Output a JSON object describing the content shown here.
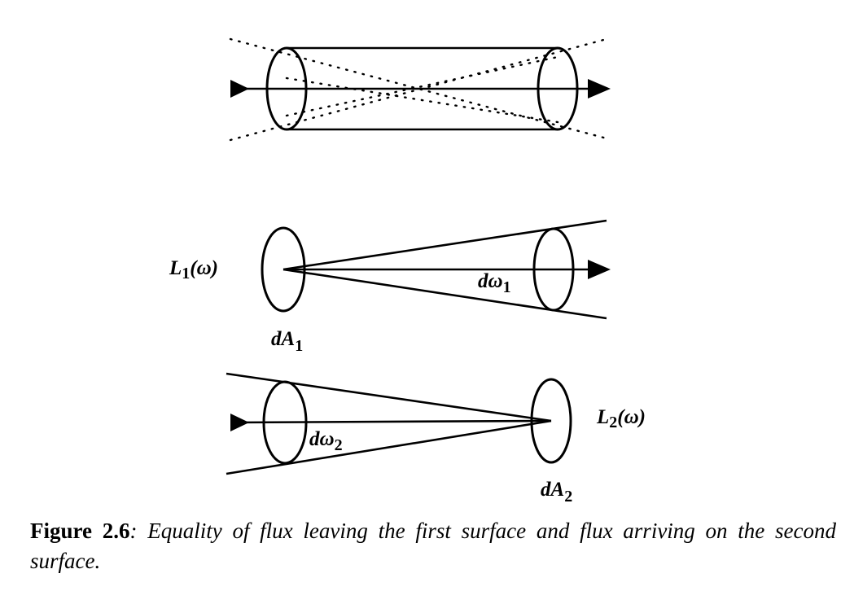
{
  "figure": {
    "panel2": {
      "radiance_label": "L",
      "radiance_sub": "1",
      "radiance_arg": "(ω)",
      "area_label": "dA",
      "area_sub": "1",
      "solid_angle_label": "dω",
      "solid_angle_sub": "1"
    },
    "panel3": {
      "radiance_label": "L",
      "radiance_sub": "2",
      "radiance_arg": "(ω)",
      "area_label": "dA",
      "area_sub": "2",
      "solid_angle_label": "dω",
      "solid_angle_sub": "2"
    }
  },
  "caption": {
    "label": "Figure 2.6",
    "text": ": Equality of flux leaving the first surface and flux arriving on the second surface."
  }
}
